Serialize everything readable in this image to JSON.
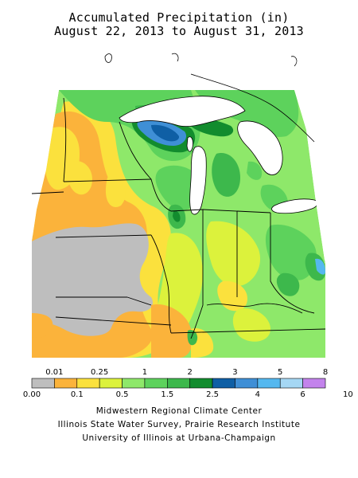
{
  "title": {
    "line1": "Accumulated Precipitation (in)",
    "line2": "August 22, 2013 to August 31, 2013"
  },
  "legend": {
    "top_labels": [
      "0.01",
      "0.25",
      "1",
      "2",
      "3",
      "5",
      "8"
    ],
    "bottom_labels": [
      "0.00",
      "0.1",
      "0.5",
      "1.5",
      "2.5",
      "4",
      "6",
      "10"
    ],
    "colors": [
      "#bebebe",
      "#fbb33b",
      "#fbe13d",
      "#dcf23c",
      "#8ee86a",
      "#5dd25c",
      "#3db84c",
      "#128c2e",
      "#0f5fa5",
      "#3f8fd6",
      "#55b8ef",
      "#a5d7f4",
      "#c383ec"
    ]
  },
  "credits": {
    "line1": "Midwestern Regional Climate Center",
    "line2": "Illinois State Water Survey, Prairie Research Institute",
    "line3": "University of Illinois at Urbana-Champaign"
  }
}
